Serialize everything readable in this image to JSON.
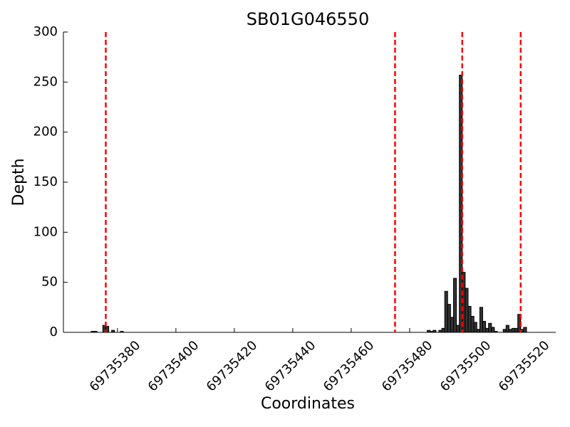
{
  "chart_data": {
    "type": "bar",
    "title": "SB01G046550",
    "xlabel": "Coordinates",
    "ylabel": "Depth",
    "x": [
      69735371,
      69735372,
      69735375,
      69735376,
      69735378,
      69735381,
      69735486,
      69735487,
      69735488,
      69735490,
      69735491,
      69735492,
      69735493,
      69735494,
      69735495,
      69735496,
      69735497,
      69735498,
      69735499,
      69735500,
      69735501,
      69735502,
      69735503,
      69735504,
      69735505,
      69735506,
      69735507,
      69735508,
      69735509,
      69735512,
      69735513,
      69735514,
      69735515,
      69735516,
      69735517,
      69735518,
      69735519
    ],
    "values": [
      1,
      1,
      7,
      6,
      2,
      1,
      2,
      1,
      2,
      2,
      4,
      41,
      28,
      15,
      54,
      7,
      257,
      60,
      44,
      26,
      16,
      10,
      3,
      25,
      11,
      4,
      9,
      5,
      1,
      3,
      7,
      3,
      4,
      4,
      18,
      3,
      5
    ],
    "color": "#333333",
    "vlines": [
      69735376,
      69735475,
      69735498,
      69735518
    ],
    "vline_color": "#ff0000",
    "xlim": [
      69735361.5,
      69735530
    ],
    "xticks": [
      69735380,
      69735400,
      69735420,
      69735440,
      69735460,
      69735480,
      69735500,
      69735520
    ],
    "ylim": [
      0,
      300
    ],
    "yticks": [
      0,
      50,
      100,
      150,
      200,
      250,
      300
    ]
  }
}
